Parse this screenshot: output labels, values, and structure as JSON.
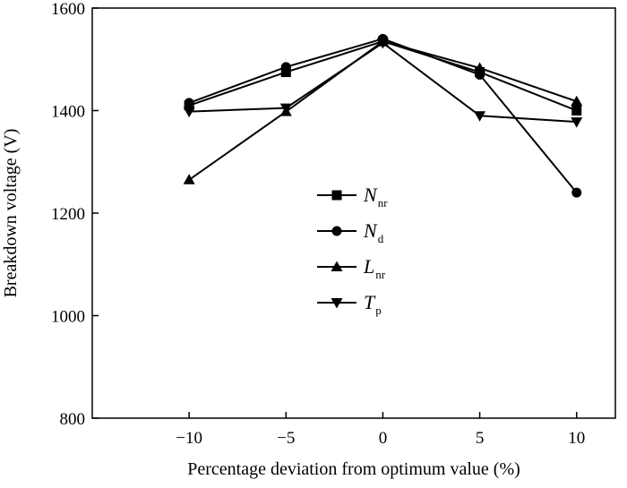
{
  "chart_data": {
    "type": "line",
    "title": "",
    "xlabel": "Percentage deviation from optimum value (%)",
    "ylabel": "Breakdown voltage (V)",
    "x": [
      -10,
      -5,
      0,
      5,
      10
    ],
    "xlim": [
      -15,
      12
    ],
    "ylim": [
      800,
      1600
    ],
    "x_ticks": [
      -10,
      -5,
      0,
      5,
      10
    ],
    "x_tick_labels": [
      "−10",
      "−5",
      "0",
      "5",
      "10"
    ],
    "y_ticks": [
      800,
      1000,
      1200,
      1400,
      1600
    ],
    "y_tick_labels": [
      "800",
      "1000",
      "1200",
      "1400",
      "1600"
    ],
    "grid": false,
    "legend_position": "center",
    "series": [
      {
        "name": "N",
        "subscript": "nr",
        "marker": "square",
        "values": [
          1410,
          1475,
          1535,
          1475,
          1400
        ]
      },
      {
        "name": "N",
        "subscript": "d",
        "marker": "circle",
        "values": [
          1415,
          1485,
          1540,
          1470,
          1240
        ]
      },
      {
        "name": "L",
        "subscript": "nr",
        "marker": "triangle-up",
        "values": [
          1265,
          1398,
          1535,
          1483,
          1418
        ]
      },
      {
        "name": "T",
        "subscript": "p",
        "marker": "triangle-down",
        "values": [
          1398,
          1405,
          1532,
          1390,
          1378
        ]
      }
    ],
    "line_color": "#000000"
  }
}
